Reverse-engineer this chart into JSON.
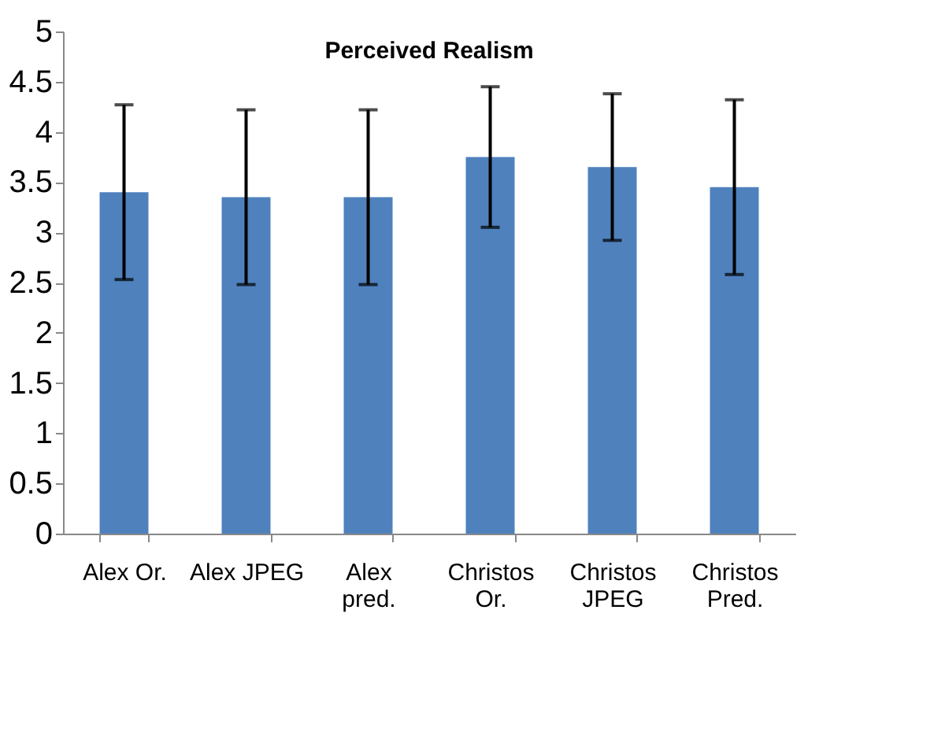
{
  "chart_data": {
    "type": "bar",
    "title": "Perceived Realism",
    "categories": [
      "Alex Or.",
      "Alex JPEG",
      "Alex pred.",
      "Christos Or.",
      "Christos JPEG",
      "Christos Pred."
    ],
    "values": [
      3.4,
      3.35,
      3.35,
      3.75,
      3.65,
      3.45
    ],
    "errors": [
      0.87,
      0.87,
      0.87,
      0.7,
      0.73,
      0.87
    ],
    "color": "#4f81bd",
    "ylim": [
      0,
      5
    ],
    "yticks": [
      0,
      0.5,
      1,
      1.5,
      2,
      2.5,
      3,
      3.5,
      4,
      4.5,
      5
    ],
    "grid": false
  }
}
